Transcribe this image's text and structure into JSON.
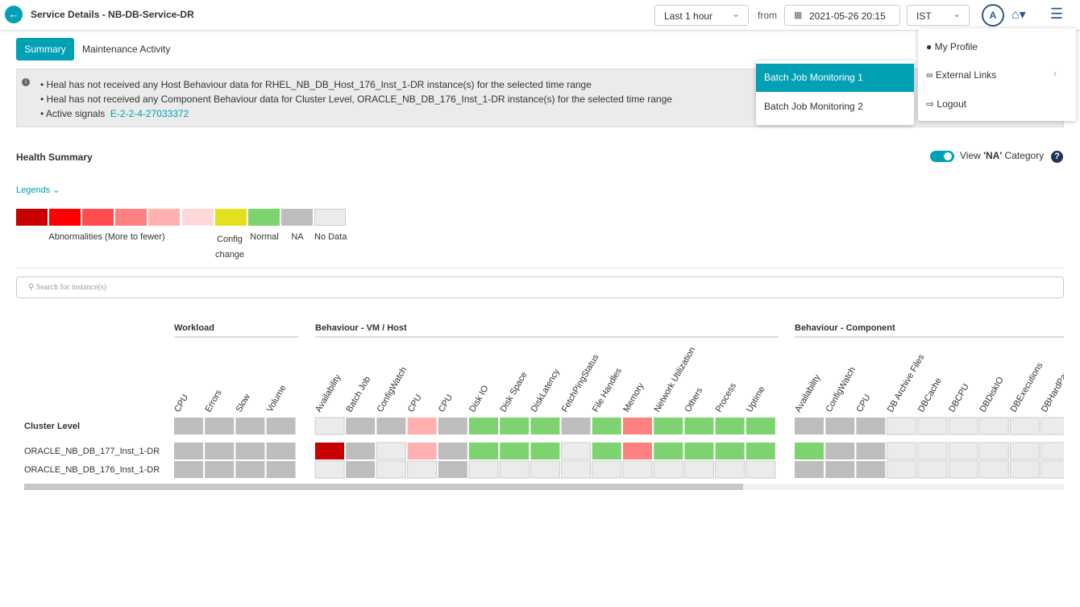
{
  "header": {
    "title": "Service Details - NB-DB-Service-DR",
    "time_range": "Last 1 hour",
    "from_label": "from",
    "date": "2021-05-26 20:15",
    "timezone": "IST",
    "avatar": "A"
  },
  "tabs": [
    "Summary",
    "Maintenance Activity"
  ],
  "notices": [
    "Heal has not received any Host Behaviour data for RHEL_NB_DB_Host_176_Inst_1-DR instance(s) for the selected time range",
    "Heal has not received any Component Behaviour data for Cluster Level, ORACLE_NB_DB_176_Inst_1-DR instance(s) for the selected time range"
  ],
  "active_signals": {
    "label": "Active signals",
    "value": "E-2-2-4-27033372"
  },
  "dropdown": [
    "Batch Job Monitoring 1",
    "Batch Job Monitoring 2"
  ],
  "user_menu": [
    "My Profile",
    "External Links",
    "Logout"
  ],
  "health_summary": {
    "title": "Health Summary",
    "toggle_parts": [
      "View ",
      "'NA'",
      " Category"
    ]
  },
  "legends": {
    "title": "Legends",
    "colors": [
      "#c80000",
      "#ff0000",
      "#ff4d4d",
      "#ff8080",
      "#ffb0b0",
      "#ffd9d9",
      "#e3e01c",
      "#7dd36f",
      "#bdbdbd",
      "#ebebeb"
    ],
    "labels": [
      "Abnormalities (More to fewer)",
      "Config change",
      "Normal",
      "NA",
      "No Data"
    ]
  },
  "search_placeholder": "Search for instance(s)",
  "grid": {
    "groups": [
      {
        "title": "Workload",
        "columns": [
          "CPU",
          "Errors",
          "Slow",
          "Volume"
        ]
      },
      {
        "title": "Behaviour - VM / Host",
        "columns": [
          "Availability",
          "Batch Job",
          "ConfigWatch",
          "CPU",
          "CPU",
          "Disk IO",
          "Disk Space",
          "DiskLatency",
          "FetchPingStatus",
          "File Handles",
          "Memory",
          "Network Utilization",
          "Others",
          "Process",
          "Uptime"
        ]
      },
      {
        "title": "Behaviour - Component",
        "columns": [
          "Availability",
          "ConfigWatch",
          "CPU",
          "DB Archive Files",
          "DBCache",
          "DBCPU",
          "DBDiskIO",
          "DBExecutions",
          "DBHardParse"
        ]
      }
    ],
    "rows": [
      {
        "label": "Cluster Level",
        "cells": [
          [
            "#bdbdbd",
            "#bdbdbd",
            "#bdbdbd",
            "#bdbdbd"
          ],
          [
            "#ebebeb",
            "#bdbdbd",
            "#bdbdbd",
            "#ffb0b0",
            "#bdbdbd",
            "#7dd36f",
            "#7dd36f",
            "#7dd36f",
            "#bdbdbd",
            "#7dd36f",
            "#ff8080",
            "#7dd36f",
            "#7dd36f",
            "#7dd36f",
            "#7dd36f"
          ],
          [
            "#bdbdbd",
            "#bdbdbd",
            "#bdbdbd",
            "#ebebeb",
            "#ebebeb",
            "#ebebeb",
            "#ebebeb",
            "#ebebeb",
            "#ebebeb"
          ]
        ]
      },
      {
        "label": "ORACLE_NB_DB_177_Inst_1-DR",
        "cells": [
          [
            "#bdbdbd",
            "#bdbdbd",
            "#bdbdbd",
            "#bdbdbd"
          ],
          [
            "#c80000",
            "#bdbdbd",
            "#ebebeb",
            "#ffb0b0",
            "#bdbdbd",
            "#7dd36f",
            "#7dd36f",
            "#7dd36f",
            "#ebebeb",
            "#7dd36f",
            "#ff8080",
            "#7dd36f",
            "#7dd36f",
            "#7dd36f",
            "#7dd36f"
          ],
          [
            "#7dd36f",
            "#bdbdbd",
            "#bdbdbd",
            "#ebebeb",
            "#ebebeb",
            "#ebebeb",
            "#ebebeb",
            "#ebebeb",
            "#ebebeb"
          ]
        ]
      },
      {
        "label": "ORACLE_NB_DB_176_Inst_1-DR",
        "cells": [
          [
            "#bdbdbd",
            "#bdbdbd",
            "#bdbdbd",
            "#bdbdbd"
          ],
          [
            "#ebebeb",
            "#bdbdbd",
            "#ebebeb",
            "#ebebeb",
            "#bdbdbd",
            "#ebebeb",
            "#ebebeb",
            "#ebebeb",
            "#ebebeb",
            "#ebebeb",
            "#ebebeb",
            "#ebebeb",
            "#ebebeb",
            "#ebebeb",
            "#ebebeb"
          ],
          [
            "#bdbdbd",
            "#bdbdbd",
            "#bdbdbd",
            "#ebebeb",
            "#ebebeb",
            "#ebebeb",
            "#ebebeb",
            "#ebebeb",
            "#ebebeb"
          ]
        ]
      }
    ]
  }
}
